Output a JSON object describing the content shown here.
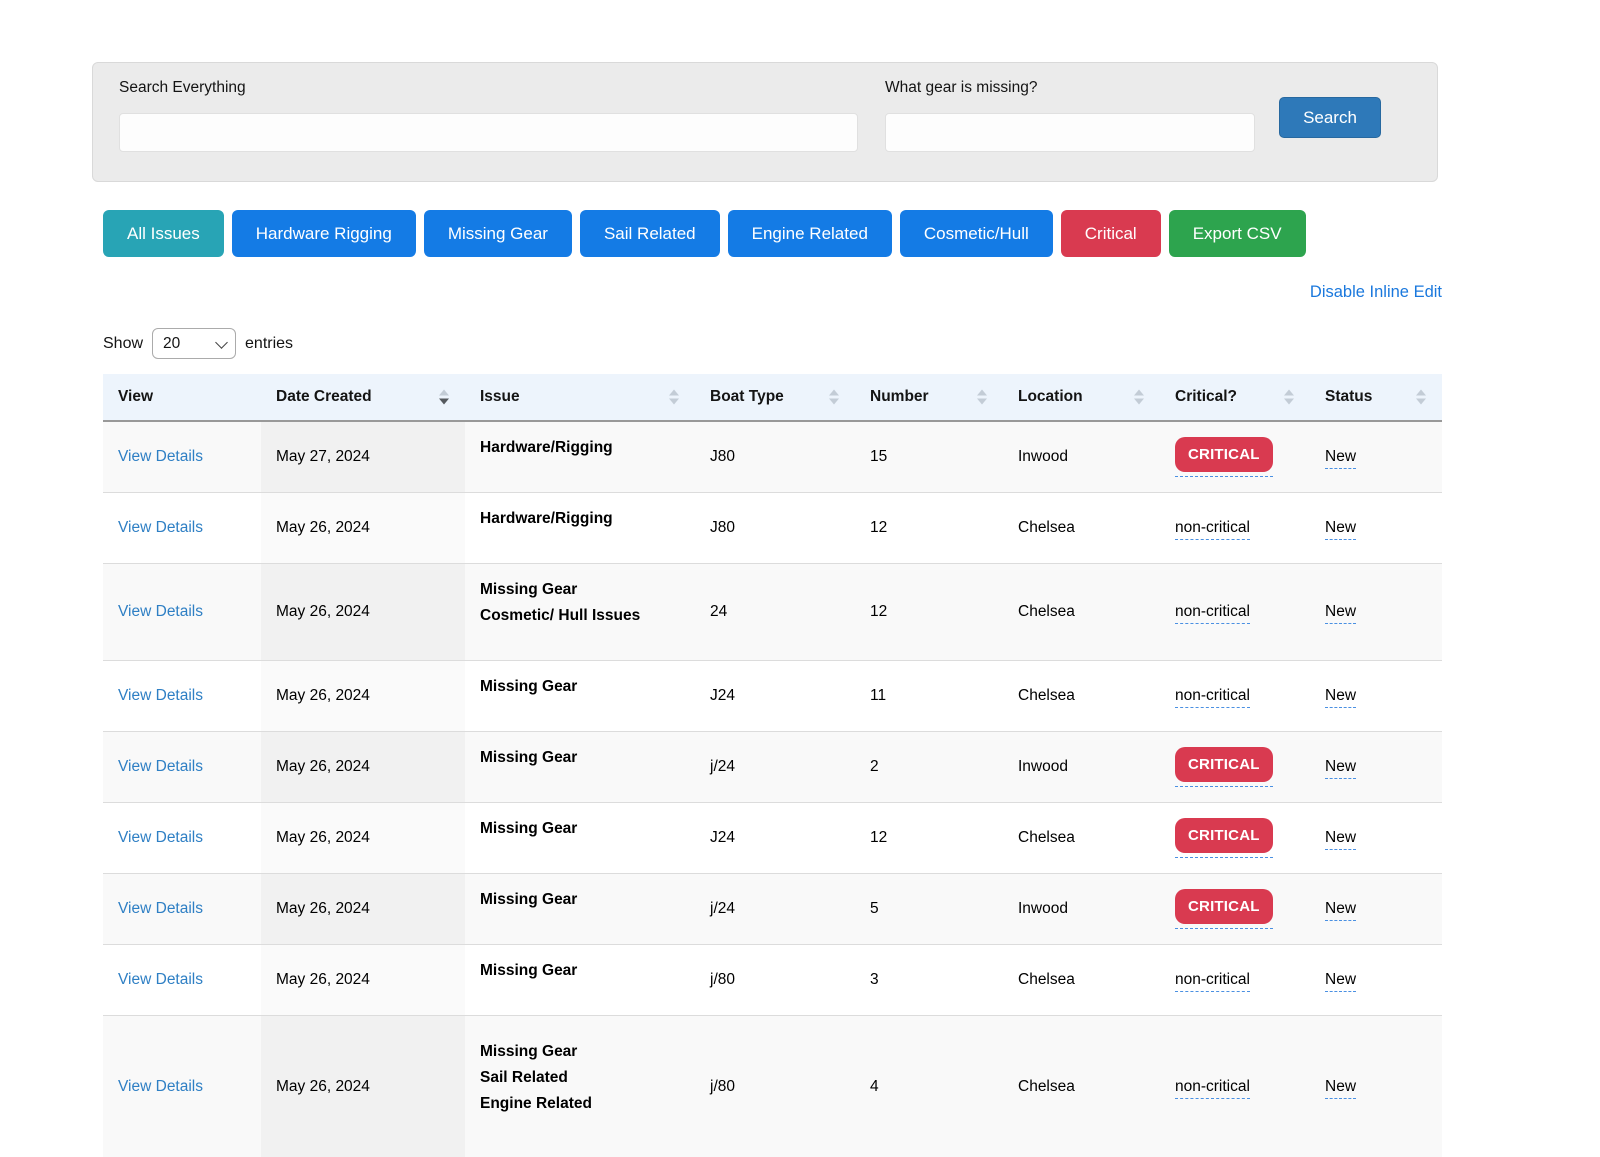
{
  "search_panel": {
    "search_label": "Search Everything",
    "gear_label": "What gear is missing?",
    "search_input_value": "",
    "gear_input_value": "",
    "search_button_label": "Search"
  },
  "filters": {
    "buttons": [
      {
        "label": "All Issues",
        "color": "#28a4b5"
      },
      {
        "label": "Hardware Rigging",
        "color": "#147be5"
      },
      {
        "label": "Missing Gear",
        "color": "#147be5"
      },
      {
        "label": "Sail Related",
        "color": "#147be5"
      },
      {
        "label": "Engine Related",
        "color": "#147be5"
      },
      {
        "label": "Cosmetic/Hull",
        "color": "#147be5"
      },
      {
        "label": "Critical",
        "color": "#d93a50"
      },
      {
        "label": "Export CSV",
        "color": "#2da44e"
      }
    ]
  },
  "inline_edit_link": "Disable Inline Edit",
  "entries_control": {
    "show_label": "Show",
    "selected_value": "20",
    "entries_label": "entries"
  },
  "table": {
    "headers": {
      "view": "View",
      "date_created": "Date Created",
      "issue": "Issue",
      "boat_type": "Boat Type",
      "number": "Number",
      "location": "Location",
      "critical": "Critical?",
      "status": "Status"
    },
    "sorted_column": "Date Created",
    "sort_direction": "descending",
    "view_link_label": "View Details",
    "rows": [
      {
        "date": "May 27, 2024",
        "issue": "Hardware/Rigging",
        "boat_type": "J80",
        "number": "15",
        "location": "Inwood",
        "critical": "CRITICAL",
        "status": "New"
      },
      {
        "date": "May 26, 2024",
        "issue": "Hardware/Rigging",
        "boat_type": "J80",
        "number": "12",
        "location": "Chelsea",
        "critical": "non-critical",
        "status": "New"
      },
      {
        "date": "May 26, 2024",
        "issue": "Missing Gear\nCosmetic/ Hull Issues",
        "boat_type": "24",
        "number": "12",
        "location": "Chelsea",
        "critical": "non-critical",
        "status": "New"
      },
      {
        "date": "May 26, 2024",
        "issue": "Missing Gear",
        "boat_type": "J24",
        "number": "11",
        "location": "Chelsea",
        "critical": "non-critical",
        "status": "New"
      },
      {
        "date": "May 26, 2024",
        "issue": "Missing Gear",
        "boat_type": "j/24",
        "number": "2",
        "location": "Inwood",
        "critical": "CRITICAL",
        "status": "New"
      },
      {
        "date": "May 26, 2024",
        "issue": "Missing Gear",
        "boat_type": "J24",
        "number": "12",
        "location": "Chelsea",
        "critical": "CRITICAL",
        "status": "New"
      },
      {
        "date": "May 26, 2024",
        "issue": "Missing Gear",
        "boat_type": "j/24",
        "number": "5",
        "location": "Inwood",
        "critical": "CRITICAL",
        "status": "New"
      },
      {
        "date": "May 26, 2024",
        "issue": "Missing Gear",
        "boat_type": "j/80",
        "number": "3",
        "location": "Chelsea",
        "critical": "non-critical",
        "status": "New"
      },
      {
        "date": "May 26, 2024",
        "issue": "Missing Gear\nSail Related\nEngine Related",
        "boat_type": "j/80",
        "number": "4",
        "location": "Chelsea",
        "critical": "non-critical",
        "status": "New"
      }
    ]
  },
  "colors": {
    "filter_blue": "#147be5",
    "filter_teal": "#28a4b5",
    "filter_red": "#d93a50",
    "filter_green": "#2da44e",
    "search_button_blue": "#2e79b9",
    "link_blue": "#2e7fc4",
    "inline_edit_link_blue": "#1a78dd",
    "critical_badge_red": "#d93a50",
    "table_header_bg": "#edf4fc",
    "stripe_row_bg": "#f9f9f9",
    "sorted_cell_bg": "#f1f1f1",
    "editable_underline_blue": "#4a90e2",
    "panel_gray": "#ebebeb"
  }
}
